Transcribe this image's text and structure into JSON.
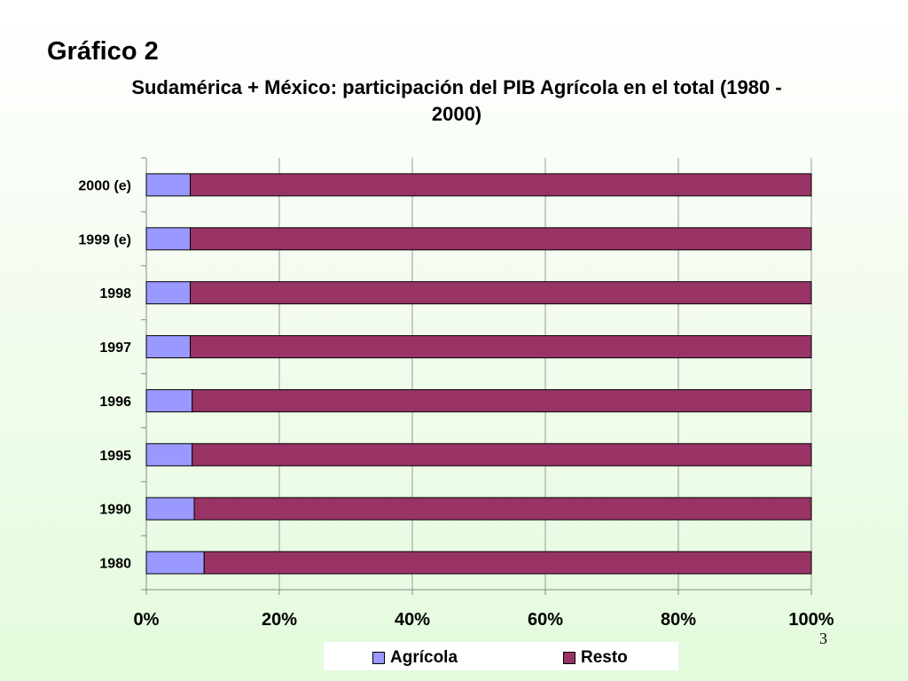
{
  "slide": {
    "heading": "Gráfico 2",
    "page_number": "3"
  },
  "chart_data": {
    "type": "bar",
    "orientation": "horizontal",
    "stacked": "100%",
    "title": "Sudamérica + México: participación del PIB Agrícola en el total (1980 - 2000)",
    "categories": [
      "2000 (e)",
      "1999 (e)",
      "1998",
      "1997",
      "1996",
      "1995",
      "1990",
      "1980"
    ],
    "series": [
      {
        "name": "Agrícola",
        "color": "#9999ff",
        "values": [
          6.6,
          6.6,
          6.6,
          6.6,
          6.9,
          6.9,
          7.2,
          8.7
        ]
      },
      {
        "name": "Resto",
        "color": "#993366",
        "values": [
          93.4,
          93.4,
          93.4,
          93.4,
          93.1,
          93.1,
          92.8,
          91.3
        ]
      }
    ],
    "x_ticks": [
      "0%",
      "20%",
      "40%",
      "60%",
      "80%",
      "100%"
    ],
    "xlim": [
      0,
      100
    ],
    "grid": "vertical",
    "legend": "bottom"
  }
}
